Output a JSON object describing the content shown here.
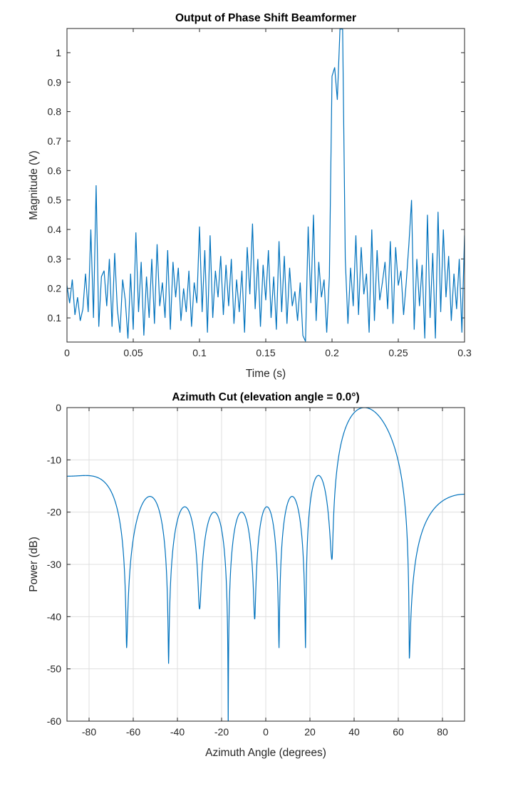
{
  "chart_data": [
    {
      "type": "line",
      "title": "Output of Phase Shift Beamformer",
      "xlabel": "Time (s)",
      "ylabel": "Magnitude (V)",
      "xlim": [
        0,
        0.3
      ],
      "ylim": [
        0.018,
        1.082
      ],
      "grid": false,
      "line_color": "#0072BD",
      "xticks": [
        0,
        0.05,
        0.1,
        0.15,
        0.2,
        0.25,
        0.3
      ],
      "xtick_labels": [
        "0",
        "0.05",
        "0.1",
        "0.15",
        "0.2",
        "0.25",
        "0.3"
      ],
      "yticks": [
        0.1,
        0.2,
        0.3,
        0.4,
        0.5,
        0.6,
        0.7,
        0.8,
        0.9,
        1
      ],
      "ytick_labels": [
        "0.1",
        "0.2",
        "0.3",
        "0.4",
        "0.5",
        "0.6",
        "0.7",
        "0.8",
        "0.9",
        "1"
      ],
      "x_step": 0.002,
      "y": [
        0.21,
        0.15,
        0.23,
        0.11,
        0.17,
        0.09,
        0.13,
        0.25,
        0.12,
        0.4,
        0.1,
        0.55,
        0.07,
        0.24,
        0.26,
        0.14,
        0.3,
        0.07,
        0.32,
        0.13,
        0.05,
        0.23,
        0.16,
        0.03,
        0.25,
        0.06,
        0.39,
        0.12,
        0.29,
        0.04,
        0.24,
        0.1,
        0.3,
        0.08,
        0.35,
        0.14,
        0.22,
        0.1,
        0.33,
        0.06,
        0.29,
        0.17,
        0.27,
        0.09,
        0.2,
        0.12,
        0.26,
        0.07,
        0.22,
        0.15,
        0.41,
        0.12,
        0.33,
        0.05,
        0.38,
        0.1,
        0.26,
        0.17,
        0.31,
        0.11,
        0.28,
        0.14,
        0.3,
        0.08,
        0.23,
        0.12,
        0.26,
        0.05,
        0.34,
        0.18,
        0.42,
        0.13,
        0.3,
        0.07,
        0.28,
        0.16,
        0.33,
        0.1,
        0.24,
        0.06,
        0.36,
        0.12,
        0.31,
        0.08,
        0.27,
        0.14,
        0.19,
        0.09,
        0.22,
        0.04,
        0.02,
        0.41,
        0.15,
        0.45,
        0.09,
        0.29,
        0.17,
        0.23,
        0.05,
        0.24,
        0.92,
        0.95,
        0.84,
        1.08,
        1.08,
        0.3,
        0.08,
        0.27,
        0.14,
        0.38,
        0.11,
        0.34,
        0.18,
        0.25,
        0.05,
        0.4,
        0.09,
        0.33,
        0.16,
        0.22,
        0.29,
        0.13,
        0.36,
        0.08,
        0.34,
        0.21,
        0.26,
        0.11,
        0.22,
        0.35,
        0.5,
        0.06,
        0.3,
        0.14,
        0.28,
        0.03,
        0.45,
        0.1,
        0.32,
        0.03,
        0.46,
        0.12,
        0.4,
        0.17,
        0.31,
        0.09,
        0.25,
        0.13,
        0.3,
        0.05,
        0.38
      ]
    },
    {
      "type": "line",
      "title": "Azimuth Cut (elevation angle = 0.0°)",
      "xlabel": "Azimuth Angle (degrees)",
      "ylabel": "Power (dB)",
      "xlim": [
        -90,
        90
      ],
      "ylim": [
        -60,
        0
      ],
      "grid": true,
      "line_color": "#0072BD",
      "xticks": [
        -80,
        -60,
        -40,
        -20,
        0,
        20,
        40,
        60,
        80
      ],
      "xtick_labels": [
        "-80",
        "-60",
        "-40",
        "-20",
        "0",
        "20",
        "40",
        "60",
        "80"
      ],
      "yticks": [
        -60,
        -50,
        -40,
        -30,
        -20,
        -10,
        0
      ],
      "ytick_labels": [
        "-60",
        "-50",
        "-40",
        "-30",
        "-20",
        "-10",
        "0"
      ],
      "nulls": [
        {
          "angle": -63,
          "dB": -46
        },
        {
          "angle": -44,
          "dB": -49
        },
        {
          "angle": -30,
          "dB": -38.5
        },
        {
          "angle": -17,
          "dB": -62
        },
        {
          "angle": -5,
          "dB": -40.5
        },
        {
          "angle": 6,
          "dB": -46
        },
        {
          "angle": 18,
          "dB": -46
        },
        {
          "angle": 30,
          "dB": -29
        },
        {
          "angle": 65,
          "dB": -48
        }
      ],
      "lobe_peaks": [
        {
          "angle": -90,
          "dB": -13
        },
        {
          "angle": -53,
          "dB": -17
        },
        {
          "angle": -37,
          "dB": -19
        },
        {
          "angle": -24,
          "dB": -20
        },
        {
          "angle": -11,
          "dB": -20
        },
        {
          "angle": 0,
          "dB": -19
        },
        {
          "angle": 11,
          "dB": -17
        },
        {
          "angle": 24,
          "dB": -13
        },
        {
          "angle": 45,
          "dB": 0
        },
        {
          "angle": 90,
          "dB": -13
        }
      ]
    }
  ]
}
